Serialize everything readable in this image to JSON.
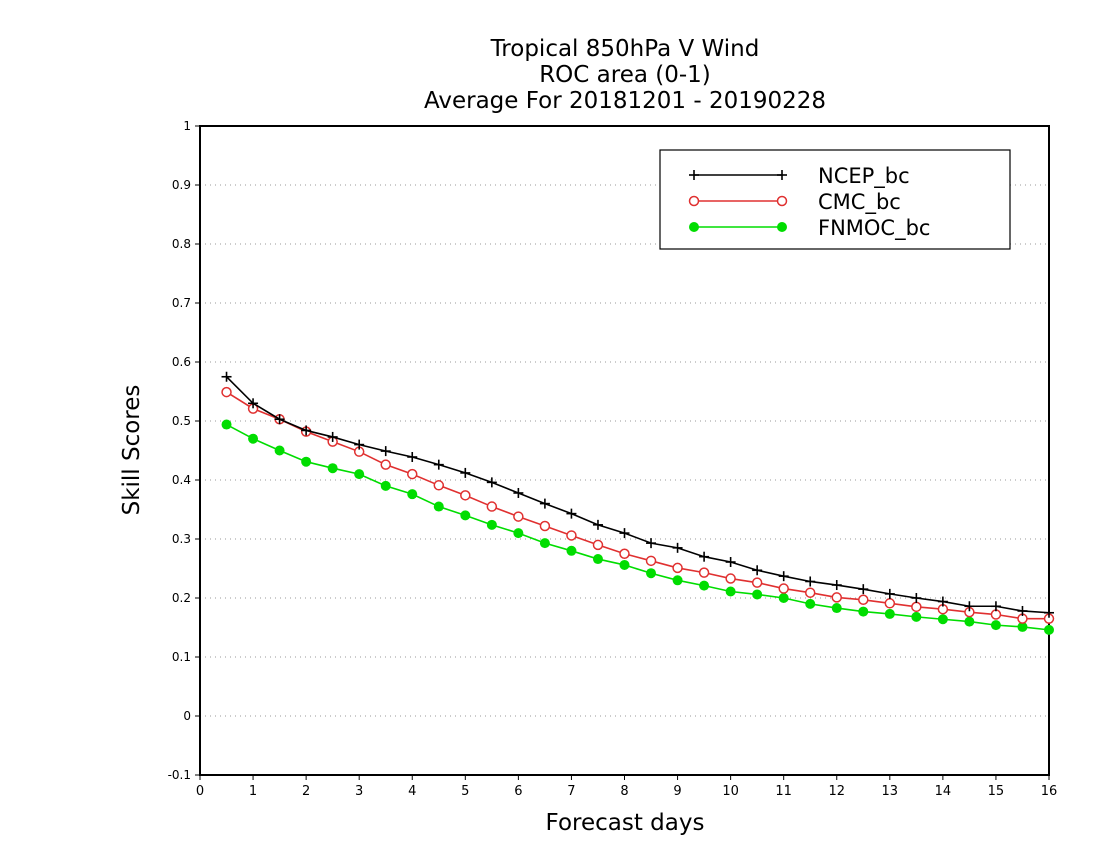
{
  "chart_data": {
    "type": "line",
    "title_lines": [
      "Tropical 850hPa V Wind",
      "ROC area (0-1)",
      "Average For 20181201 - 20190228"
    ],
    "xlabel": "Forecast days",
    "ylabel": "Skill Scores",
    "xlim": [
      0,
      16
    ],
    "ylim": [
      -0.1,
      1
    ],
    "x_ticks": [
      "0",
      "1",
      "2",
      "3",
      "4",
      "5",
      "6",
      "7",
      "8",
      "9",
      "10",
      "11",
      "12",
      "13",
      "14",
      "15",
      "16"
    ],
    "y_ticks": [
      "-0.1",
      "0",
      "0.1",
      "0.2",
      "0.3",
      "0.4",
      "0.5",
      "0.6",
      "0.7",
      "0.8",
      "0.9",
      "1"
    ],
    "grid": "horizontal dotted",
    "legend_position": "top-right",
    "x": [
      0.5,
      1,
      1.5,
      2,
      2.5,
      3,
      3.5,
      4,
      4.5,
      5,
      5.5,
      6,
      6.5,
      7,
      7.5,
      8,
      8.5,
      9,
      9.5,
      10,
      10.5,
      11,
      11.5,
      12,
      12.5,
      13,
      13.5,
      14,
      14.5,
      15,
      15.5,
      16
    ],
    "series": [
      {
        "name": "NCEP_bc",
        "color": "#000000",
        "marker": "plus",
        "values": [
          0.575,
          0.53,
          0.503,
          0.484,
          0.473,
          0.46,
          0.449,
          0.439,
          0.426,
          0.412,
          0.396,
          0.378,
          0.36,
          0.343,
          0.324,
          0.31,
          0.293,
          0.285,
          0.27,
          0.261,
          0.247,
          0.237,
          0.228,
          0.222,
          0.215,
          0.207,
          0.2,
          0.194,
          0.186,
          0.186,
          0.178,
          0.175
        ]
      },
      {
        "name": "CMC_bc",
        "color": "#e03030",
        "marker": "open-circle",
        "values": [
          0.549,
          0.521,
          0.503,
          0.482,
          0.465,
          0.448,
          0.426,
          0.41,
          0.391,
          0.374,
          0.355,
          0.338,
          0.322,
          0.306,
          0.29,
          0.275,
          0.263,
          0.251,
          0.243,
          0.233,
          0.226,
          0.216,
          0.209,
          0.201,
          0.197,
          0.191,
          0.185,
          0.181,
          0.176,
          0.172,
          0.165,
          0.165
        ]
      },
      {
        "name": "FNMOC_bc",
        "color": "#00dd00",
        "marker": "filled-circle",
        "values": [
          0.494,
          0.47,
          0.45,
          0.431,
          0.42,
          0.41,
          0.39,
          0.376,
          0.355,
          0.34,
          0.324,
          0.31,
          0.293,
          0.28,
          0.266,
          0.256,
          0.242,
          0.23,
          0.221,
          0.211,
          0.206,
          0.2,
          0.19,
          0.183,
          0.177,
          0.173,
          0.168,
          0.164,
          0.16,
          0.154,
          0.151,
          0.146
        ]
      }
    ]
  }
}
